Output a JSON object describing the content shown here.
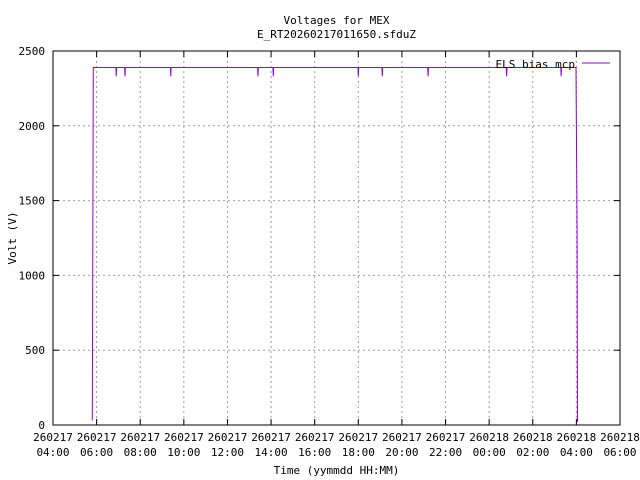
{
  "chart_data": {
    "type": "line",
    "title": "Voltages for MEX",
    "subtitle": "E_RT20260217011650.sfduZ",
    "xlabel": "Time (yymmdd HH:MM)",
    "ylabel": "Volt (V)",
    "x_unit": "hours",
    "xlim": [
      4,
      30
    ],
    "ylim": [
      0,
      2500
    ],
    "grid": true,
    "legend_position": "top-right",
    "x_ticks": [
      {
        "value": 4,
        "date": "260217",
        "time": "04:00"
      },
      {
        "value": 6,
        "date": "260217",
        "time": "06:00"
      },
      {
        "value": 8,
        "date": "260217",
        "time": "08:00"
      },
      {
        "value": 10,
        "date": "260217",
        "time": "10:00"
      },
      {
        "value": 12,
        "date": "260217",
        "time": "12:00"
      },
      {
        "value": 14,
        "date": "260217",
        "time": "14:00"
      },
      {
        "value": 16,
        "date": "260217",
        "time": "16:00"
      },
      {
        "value": 18,
        "date": "260217",
        "time": "18:00"
      },
      {
        "value": 20,
        "date": "260217",
        "time": "20:00"
      },
      {
        "value": 22,
        "date": "260217",
        "time": "22:00"
      },
      {
        "value": 24,
        "date": "260218",
        "time": "00:00"
      },
      {
        "value": 26,
        "date": "260218",
        "time": "02:00"
      },
      {
        "value": 28,
        "date": "260218",
        "time": "04:00"
      },
      {
        "value": 30,
        "date": "260218",
        "time": "06:00"
      }
    ],
    "y_ticks": [
      0,
      500,
      1000,
      1500,
      2000,
      2500
    ],
    "series": [
      {
        "name": "ELS bias mcp",
        "color": "#9400d3",
        "points": [
          {
            "x": "260217 05:48",
            "y": 30
          },
          {
            "x": "260217 05:51",
            "y": 2390
          },
          {
            "x": "260217 06:53",
            "y": 2390
          },
          {
            "x": "260217 06:54",
            "y": 2330
          },
          {
            "x": "260217 06:55",
            "y": 2390
          },
          {
            "x": "260217 07:17",
            "y": 2390
          },
          {
            "x": "260217 07:18",
            "y": 2330
          },
          {
            "x": "260217 07:19",
            "y": 2390
          },
          {
            "x": "260217 09:23",
            "y": 2390
          },
          {
            "x": "260217 09:24",
            "y": 2330
          },
          {
            "x": "260217 09:25",
            "y": 2390
          },
          {
            "x": "260217 13:23",
            "y": 2390
          },
          {
            "x": "260217 13:24",
            "y": 2330
          },
          {
            "x": "260217 13:25",
            "y": 2390
          },
          {
            "x": "260217 14:05",
            "y": 2390
          },
          {
            "x": "260217 14:06",
            "y": 2330
          },
          {
            "x": "260217 14:07",
            "y": 2390
          },
          {
            "x": "260217 17:59",
            "y": 2390
          },
          {
            "x": "260217 18:00",
            "y": 2330
          },
          {
            "x": "260217 18:01",
            "y": 2390
          },
          {
            "x": "260217 19:05",
            "y": 2390
          },
          {
            "x": "260217 19:06",
            "y": 2330
          },
          {
            "x": "260217 19:07",
            "y": 2390
          },
          {
            "x": "260217 21:11",
            "y": 2390
          },
          {
            "x": "260217 21:12",
            "y": 2330
          },
          {
            "x": "260217 21:13",
            "y": 2390
          },
          {
            "x": "260218 00:47",
            "y": 2390
          },
          {
            "x": "260218 00:48",
            "y": 2330
          },
          {
            "x": "260218 00:49",
            "y": 2390
          },
          {
            "x": "260218 03:17",
            "y": 2390
          },
          {
            "x": "260218 03:18",
            "y": 2330
          },
          {
            "x": "260218 03:19",
            "y": 2390
          },
          {
            "x": "260218 03:59",
            "y": 2390
          },
          {
            "x": "260218 04:02",
            "y": 1280
          },
          {
            "x": "260218 04:03",
            "y": 20
          }
        ]
      }
    ]
  }
}
